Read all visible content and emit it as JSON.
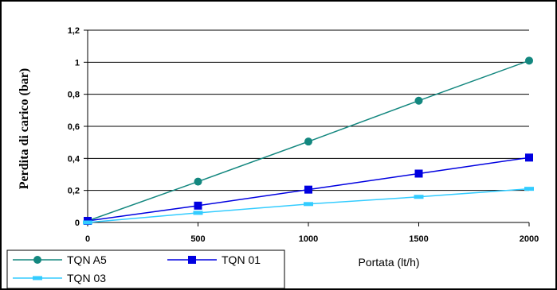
{
  "chart_data": {
    "type": "line",
    "title": "",
    "xlabel": "Portata (lt/h)",
    "ylabel": "Perdita di carico (bar)",
    "x": [
      0,
      500,
      1000,
      1500,
      2000
    ],
    "xlim": [
      0,
      2000
    ],
    "ylim": [
      0,
      1.2
    ],
    "x_ticks": [
      "0",
      "500",
      "1000",
      "1500",
      "2000"
    ],
    "y_ticks": [
      "0",
      "0,2",
      "0,4",
      "0,6",
      "0,8",
      "1",
      "1,2"
    ],
    "grid": "horizontal",
    "legend_position": "bottom-left",
    "series": [
      {
        "name": "TQN A5",
        "marker": "circle",
        "color": "#13877f",
        "values": [
          0.01,
          0.255,
          0.505,
          0.76,
          1.01
        ]
      },
      {
        "name": "TQN 01",
        "marker": "square",
        "color": "#0000e0",
        "values": [
          0.01,
          0.105,
          0.205,
          0.305,
          0.405
        ]
      },
      {
        "name": "TQN 03",
        "marker": "dash",
        "color": "#33ccff",
        "values": [
          0.0,
          0.06,
          0.115,
          0.16,
          0.21
        ]
      }
    ]
  }
}
